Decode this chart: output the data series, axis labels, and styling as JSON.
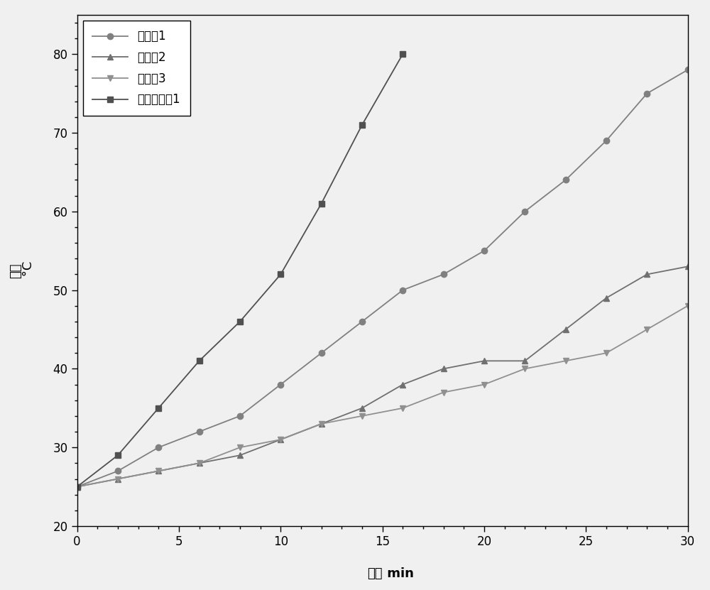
{
  "series": {
    "应用例1": {
      "x": [
        0,
        2,
        4,
        6,
        8,
        10,
        12,
        14,
        16,
        18,
        20,
        22,
        24,
        26,
        28,
        30
      ],
      "y": [
        25,
        27,
        30,
        32,
        34,
        38,
        42,
        46,
        50,
        52,
        55,
        60,
        64,
        69,
        75,
        78
      ],
      "color": "#808080",
      "marker": "o",
      "linestyle": "-",
      "markersize": 6
    },
    "应用例2": {
      "x": [
        0,
        2,
        4,
        6,
        8,
        10,
        12,
        14,
        16,
        18,
        20,
        22,
        24,
        26,
        28,
        30
      ],
      "y": [
        25,
        26,
        27,
        28,
        29,
        31,
        33,
        35,
        38,
        40,
        41,
        41,
        45,
        49,
        52,
        53
      ],
      "color": "#707070",
      "marker": "^",
      "linestyle": "-",
      "markersize": 6
    },
    "应用例3": {
      "x": [
        0,
        2,
        4,
        6,
        8,
        10,
        12,
        14,
        16,
        18,
        20,
        22,
        24,
        26,
        28,
        30
      ],
      "y": [
        25,
        26,
        27,
        28,
        30,
        31,
        33,
        34,
        35,
        37,
        38,
        40,
        41,
        42,
        45,
        48
      ],
      "color": "#909090",
      "marker": "v",
      "linestyle": "-",
      "markersize": 6
    },
    "对比应用例1": {
      "x": [
        0,
        2,
        4,
        6,
        8,
        10,
        12,
        14,
        16
      ],
      "y": [
        25,
        29,
        35,
        41,
        46,
        52,
        61,
        71,
        80
      ],
      "color": "#505050",
      "marker": "s",
      "linestyle": "-",
      "markersize": 6
    }
  },
  "xlabel_cn": "时间",
  "xlabel_en": " min",
  "ylabel_cn": "温度",
  "ylabel_degree": " °C",
  "xlim": [
    0,
    30
  ],
  "ylim": [
    20,
    85
  ],
  "xticks": [
    0,
    5,
    10,
    15,
    20,
    25,
    30
  ],
  "yticks": [
    20,
    30,
    40,
    50,
    60,
    70,
    80
  ],
  "legend_order": [
    "应用例1",
    "应用例2",
    "应用例3",
    "对比应用例1"
  ],
  "background_color": "#f0f0f0",
  "grid": false,
  "figure_width": 10.0,
  "figure_height": 8.31
}
